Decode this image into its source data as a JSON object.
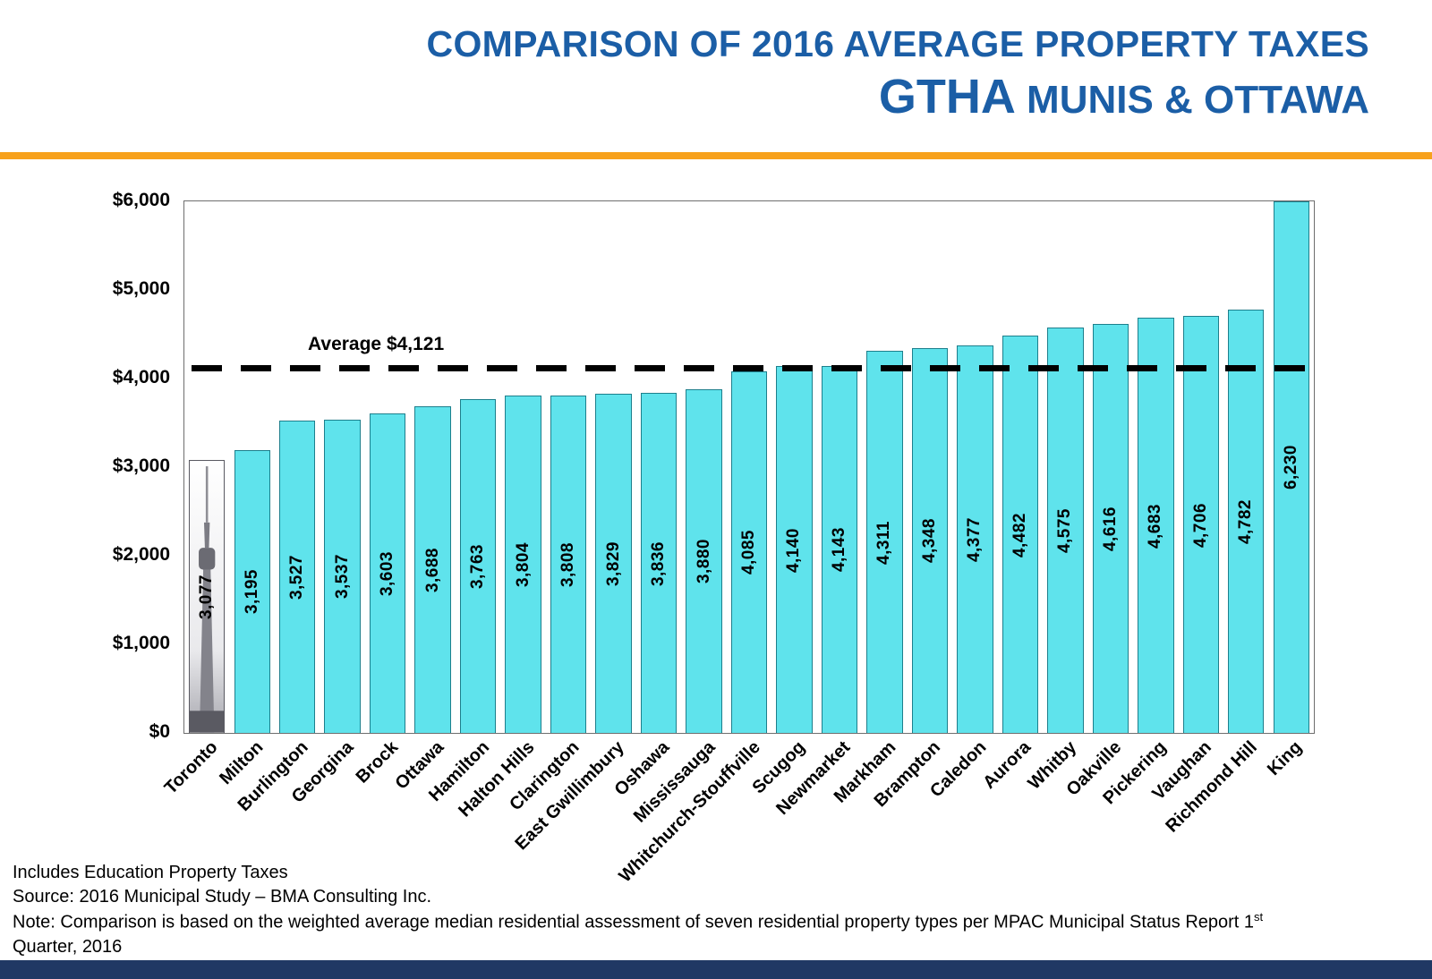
{
  "header": {
    "title_line1": "COMPARISON OF 2016 AVERAGE PROPERTY TAXES",
    "title_line2_main": "GTHA",
    "title_line2_rest": " MUNIS & OTTAWA",
    "title_color": "#1B5EA6",
    "rule_color": "#F7A11C"
  },
  "chart_data": {
    "type": "bar",
    "title": "Comparison of 2016 Average Property Taxes — GTHA Munis & Ottawa",
    "categories": [
      "Toronto",
      "Milton",
      "Burlington",
      "Georgina",
      "Brock",
      "Ottawa",
      "Hamilton",
      "Halton Hills",
      "Clarington",
      "East Gwillimbury",
      "Oshawa",
      "Mississauga",
      "Whitchurch-Stouffville",
      "Scugog",
      "Newmarket",
      "Markham",
      "Brampton",
      "Caledon",
      "Aurora",
      "Whitby",
      "Oakville",
      "Pickering",
      "Vaughan",
      "Richmond Hill",
      "King"
    ],
    "values": [
      3077,
      3195,
      3527,
      3537,
      3603,
      3688,
      3763,
      3804,
      3808,
      3829,
      3836,
      3880,
      4085,
      4140,
      4143,
      4311,
      4348,
      4377,
      4482,
      4575,
      4616,
      4683,
      4706,
      4782,
      6230
    ],
    "average": 4121,
    "average_label": "Average $4,121",
    "ylim": [
      0,
      6000
    ],
    "ytick_step": 1000,
    "ytick_labels": [
      "$0",
      "$1,000",
      "$2,000",
      "$3,000",
      "$4,000",
      "$5,000",
      "$6,000"
    ],
    "grid": false,
    "legend": "none",
    "bar_color": "#5FE3EC",
    "bar_border_color": "#1d7f8c",
    "toronto_bar_image": "cn-tower-photo"
  },
  "footer": {
    "line1": "Includes Education Property Taxes",
    "line2": "Source: 2016 Municipal Study – BMA Consulting Inc.",
    "line3": "Note: Comparison is based on the weighted average median residential assessment of seven residential property types per MPAC Municipal Status Report 1",
    "line3_sup": "st",
    "line4": "Quarter, 2016",
    "bottom_bar_color": "#203864"
  }
}
